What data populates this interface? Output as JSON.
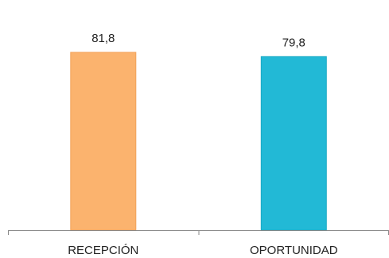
{
  "chart_data": {
    "type": "bar",
    "categories": [
      "RECEPCIÓN",
      "OPORTUNIDAD"
    ],
    "values": [
      81.8,
      79.8
    ],
    "data_labels": [
      "81,8",
      "79,8"
    ],
    "colors": [
      "#FBB36E",
      "#22B9D6"
    ],
    "bar_border_colors": [
      "#F2A25A",
      "#1AA9C4"
    ],
    "axis_color": "#888888",
    "ylim": [
      0,
      100
    ],
    "grid": false,
    "legend": "none"
  }
}
